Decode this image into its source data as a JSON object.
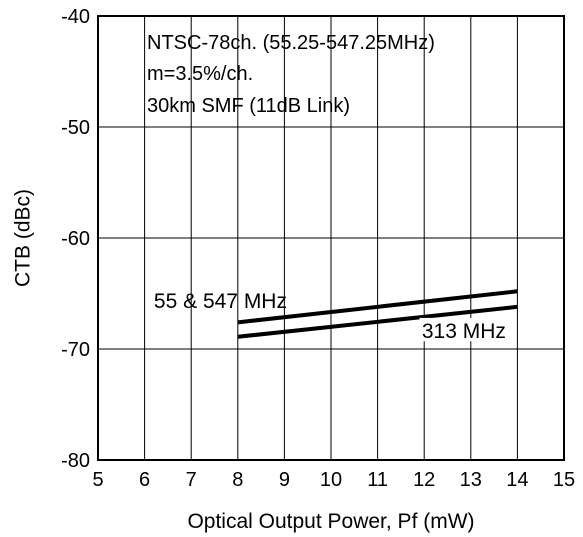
{
  "chart_data": {
    "type": "line",
    "xlabel": "Optical Output Power, Pf (mW)",
    "ylabel": "CTB (dBc)",
    "xlim": [
      5,
      15
    ],
    "ylim": [
      -80,
      -40
    ],
    "x_ticks": [
      5,
      6,
      7,
      8,
      9,
      10,
      11,
      12,
      13,
      14,
      15
    ],
    "y_ticks": [
      -40,
      -50,
      -60,
      -70,
      -80
    ],
    "x_tick_labels": [
      "5",
      "6",
      "7",
      "8",
      "9",
      "10",
      "11",
      "12",
      "13",
      "14",
      "15"
    ],
    "y_tick_labels": [
      "-40",
      "-50",
      "-60",
      "-70",
      "-80"
    ],
    "grid": true,
    "annotations": [
      "NTSC-78ch. (55.25-547.25MHz)",
      "m=3.5%/ch.",
      "30km SMF (11dB Link)"
    ],
    "series": [
      {
        "name": "55 & 547 MHz",
        "x": [
          8,
          14
        ],
        "y": [
          -67.6,
          -64.8
        ]
      },
      {
        "name": "313 MHz",
        "x": [
          8,
          14
        ],
        "y": [
          -68.9,
          -66.2
        ]
      }
    ],
    "colors": {
      "line": "#000000",
      "grid": "#000000",
      "background": "#ffffff"
    }
  }
}
